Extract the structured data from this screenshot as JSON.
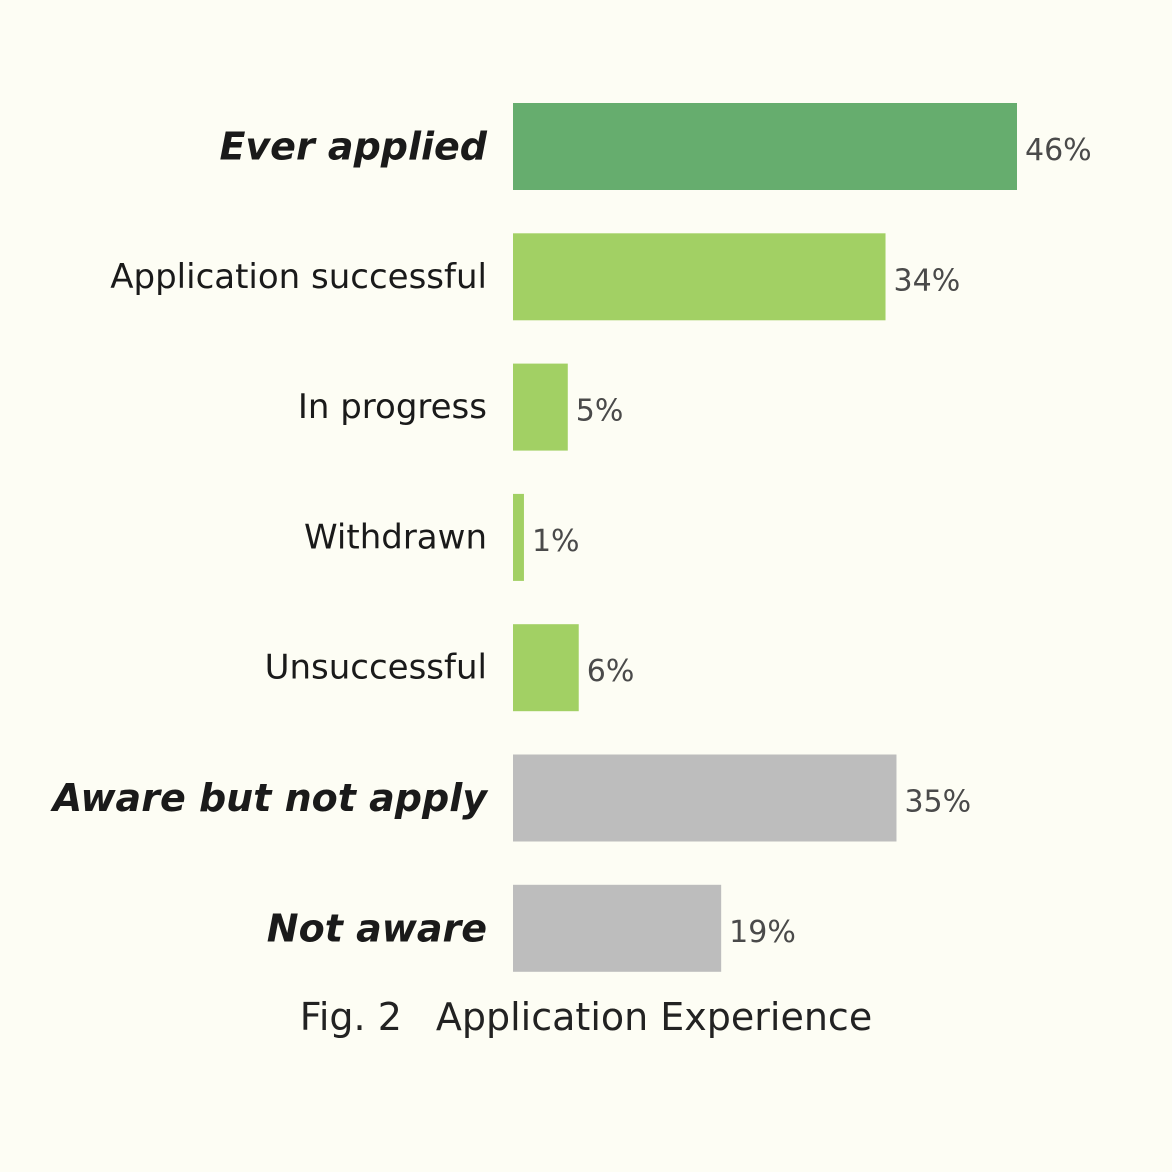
{
  "chart_data": {
    "type": "bar",
    "orientation": "horizontal",
    "categories": [
      "Ever applied",
      "Application successful",
      "In progress",
      "Withdrawn",
      "Unsuccessful",
      "Aware but not apply",
      "Not aware"
    ],
    "values": [
      46,
      34,
      5,
      1,
      6,
      35,
      19
    ],
    "value_labels": [
      "46%",
      "34%",
      "5%",
      "1%",
      "6%",
      "35%",
      "19%"
    ],
    "emphasis": [
      true,
      false,
      false,
      false,
      false,
      true,
      true
    ],
    "bar_colors": [
      "#66ad6e",
      "#a2d064",
      "#a2d064",
      "#a2d064",
      "#a2d064",
      "#bdbdbd",
      "#bdbdbd"
    ],
    "xlim": [
      0,
      46
    ],
    "grid": false,
    "legend": "none"
  },
  "caption": {
    "fig": "Fig. 2",
    "title": "Application Experience"
  },
  "colors": {
    "background": "#fdfdf4",
    "ever_applied": "#66ad6e",
    "sub_outcomes": "#a2d064",
    "not_applied": "#bdbdbd"
  }
}
